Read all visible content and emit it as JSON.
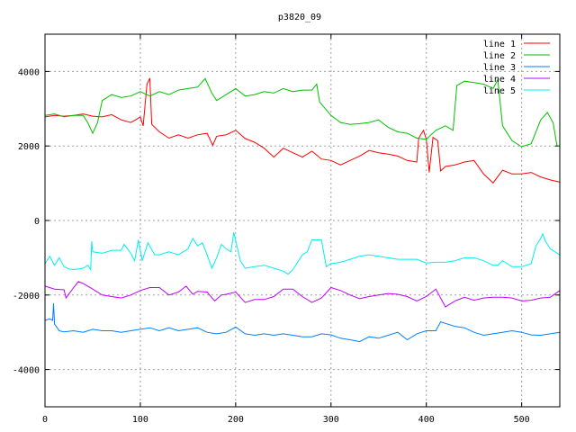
{
  "chart_data": {
    "type": "line",
    "title": "p3820_09",
    "xlabel": "",
    "ylabel": "",
    "xlim": [
      0,
      540
    ],
    "ylim": [
      -5000,
      5000
    ],
    "xticks": [
      0,
      100,
      200,
      300,
      400,
      500
    ],
    "yticks": [
      -4000,
      -2000,
      0,
      2000,
      4000
    ],
    "grid": true,
    "legend_position": "top-right",
    "series": [
      {
        "name": "line 1",
        "color": "#ff0000",
        "x": [
          0,
          10,
          20,
          30,
          40,
          50,
          60,
          70,
          80,
          90,
          95,
          100,
          103,
          107,
          110,
          112,
          120,
          130,
          140,
          150,
          160,
          170,
          176,
          180,
          190,
          200,
          210,
          220,
          230,
          240,
          250,
          260,
          270,
          280,
          290,
          300,
          310,
          320,
          330,
          340,
          350,
          360,
          370,
          380,
          390,
          392,
          397,
          400,
          403,
          407,
          412,
          415,
          420,
          430,
          440,
          450,
          460,
          470,
          480,
          490,
          500,
          510,
          520,
          530,
          540
        ],
        "y": [
          2780,
          2820,
          2800,
          2820,
          2860,
          2800,
          2780,
          2840,
          2700,
          2630,
          2700,
          2780,
          2540,
          3660,
          3820,
          2580,
          2380,
          2210,
          2300,
          2210,
          2300,
          2340,
          2020,
          2260,
          2300,
          2420,
          2200,
          2100,
          1940,
          1700,
          1940,
          1820,
          1700,
          1860,
          1650,
          1610,
          1490,
          1610,
          1730,
          1880,
          1820,
          1780,
          1730,
          1610,
          1570,
          2210,
          2420,
          2180,
          1290,
          2230,
          2140,
          1330,
          1450,
          1490,
          1570,
          1610,
          1250,
          1010,
          1350,
          1250,
          1250,
          1290,
          1170,
          1090,
          1030
        ]
      },
      {
        "name": "line 2",
        "color": "#00c000",
        "x": [
          0,
          10,
          20,
          30,
          40,
          45,
          50,
          55,
          60,
          70,
          80,
          90,
          100,
          110,
          120,
          130,
          140,
          150,
          160,
          168,
          175,
          180,
          190,
          200,
          210,
          220,
          230,
          240,
          250,
          260,
          270,
          280,
          285,
          288,
          300,
          310,
          320,
          330,
          340,
          350,
          360,
          370,
          380,
          390,
          400,
          410,
          420,
          428,
          432,
          440,
          450,
          460,
          470,
          475,
          480,
          490,
          500,
          510,
          520,
          527,
          533,
          537,
          540
        ],
        "y": [
          2820,
          2860,
          2780,
          2820,
          2820,
          2620,
          2340,
          2620,
          3220,
          3380,
          3300,
          3340,
          3460,
          3340,
          3460,
          3380,
          3500,
          3540,
          3580,
          3810,
          3420,
          3220,
          3380,
          3540,
          3340,
          3380,
          3460,
          3420,
          3540,
          3460,
          3500,
          3500,
          3660,
          3180,
          2820,
          2630,
          2580,
          2600,
          2630,
          2700,
          2500,
          2380,
          2340,
          2210,
          2180,
          2420,
          2540,
          2420,
          3620,
          3740,
          3700,
          3660,
          3540,
          3780,
          2540,
          2140,
          1980,
          2060,
          2700,
          2900,
          2620,
          2020,
          1990
        ]
      },
      {
        "name": "line 3",
        "color": "#0080ff",
        "x": [
          0,
          5,
          8,
          9,
          10,
          15,
          20,
          30,
          40,
          50,
          60,
          70,
          80,
          90,
          100,
          110,
          120,
          130,
          140,
          150,
          160,
          170,
          180,
          190,
          200,
          210,
          220,
          230,
          240,
          250,
          260,
          270,
          280,
          290,
          300,
          310,
          320,
          330,
          340,
          350,
          360,
          370,
          380,
          390,
          400,
          410,
          415,
          420,
          430,
          440,
          450,
          460,
          470,
          480,
          490,
          500,
          510,
          520,
          530,
          540
        ],
        "y": [
          -2680,
          -2640,
          -2680,
          -2220,
          -2780,
          -2960,
          -2990,
          -2960,
          -3000,
          -2920,
          -2960,
          -2960,
          -3000,
          -2960,
          -2920,
          -2880,
          -2960,
          -2880,
          -2960,
          -2920,
          -2880,
          -3000,
          -3040,
          -3000,
          -2860,
          -3040,
          -3080,
          -3040,
          -3080,
          -3040,
          -3080,
          -3120,
          -3120,
          -3040,
          -3070,
          -3160,
          -3200,
          -3250,
          -3120,
          -3160,
          -3080,
          -3000,
          -3200,
          -3040,
          -2960,
          -2960,
          -2720,
          -2760,
          -2840,
          -2880,
          -3000,
          -3080,
          -3040,
          -3000,
          -2960,
          -3000,
          -3070,
          -3080,
          -3040,
          -3000
        ]
      },
      {
        "name": "line 4",
        "color": "#c000ff",
        "x": [
          0,
          10,
          20,
          22,
          30,
          35,
          40,
          50,
          60,
          70,
          80,
          90,
          100,
          110,
          120,
          130,
          140,
          148,
          155,
          160,
          170,
          178,
          185,
          190,
          200,
          210,
          220,
          230,
          240,
          250,
          260,
          270,
          280,
          290,
          300,
          310,
          320,
          330,
          340,
          350,
          360,
          370,
          380,
          390,
          400,
          410,
          420,
          430,
          440,
          450,
          460,
          470,
          480,
          490,
          500,
          510,
          520,
          530,
          540
        ],
        "y": [
          -1760,
          -1840,
          -1860,
          -2080,
          -1800,
          -1640,
          -1690,
          -1840,
          -2000,
          -2040,
          -2080,
          -2000,
          -1880,
          -1800,
          -1800,
          -2000,
          -1920,
          -1760,
          -1980,
          -1900,
          -1920,
          -2160,
          -2000,
          -1980,
          -1920,
          -2200,
          -2120,
          -2120,
          -2040,
          -1840,
          -1840,
          -2040,
          -2200,
          -2080,
          -1800,
          -1880,
          -2000,
          -2100,
          -2040,
          -2000,
          -1960,
          -1980,
          -2040,
          -2160,
          -2040,
          -1840,
          -2320,
          -2160,
          -2060,
          -2140,
          -2080,
          -2060,
          -2060,
          -2080,
          -2160,
          -2140,
          -2080,
          -2060,
          -1880
        ]
      },
      {
        "name": "line 5",
        "color": "#00eeee",
        "x": [
          0,
          5,
          10,
          15,
          20,
          25,
          30,
          40,
          45,
          48,
          49,
          50,
          60,
          70,
          80,
          83,
          90,
          94,
          98,
          102,
          108,
          115,
          120,
          130,
          140,
          150,
          155,
          160,
          165,
          170,
          175,
          180,
          185,
          190,
          195,
          198,
          205,
          210,
          220,
          230,
          240,
          250,
          255,
          260,
          270,
          275,
          280,
          290,
          295,
          300,
          310,
          320,
          330,
          340,
          350,
          360,
          370,
          380,
          390,
          400,
          410,
          420,
          430,
          440,
          450,
          460,
          470,
          475,
          480,
          490,
          500,
          510,
          515,
          520,
          522,
          525,
          530,
          540
        ],
        "y": [
          -1160,
          -960,
          -1200,
          -1000,
          -1240,
          -1300,
          -1320,
          -1280,
          -1200,
          -1320,
          -560,
          -840,
          -880,
          -800,
          -800,
          -640,
          -880,
          -1080,
          -520,
          -1080,
          -600,
          -920,
          -920,
          -840,
          -920,
          -760,
          -480,
          -680,
          -600,
          -920,
          -1280,
          -1000,
          -640,
          -760,
          -840,
          -320,
          -1080,
          -1280,
          -1240,
          -1200,
          -1280,
          -1360,
          -1440,
          -1320,
          -920,
          -840,
          -520,
          -520,
          -1240,
          -1160,
          -1120,
          -1040,
          -960,
          -920,
          -960,
          -1000,
          -1040,
          -1040,
          -1040,
          -1140,
          -1120,
          -1120,
          -1080,
          -1000,
          -1000,
          -1080,
          -1200,
          -1200,
          -1080,
          -1240,
          -1240,
          -1160,
          -680,
          -480,
          -360,
          -560,
          -760,
          -920
        ]
      }
    ]
  }
}
